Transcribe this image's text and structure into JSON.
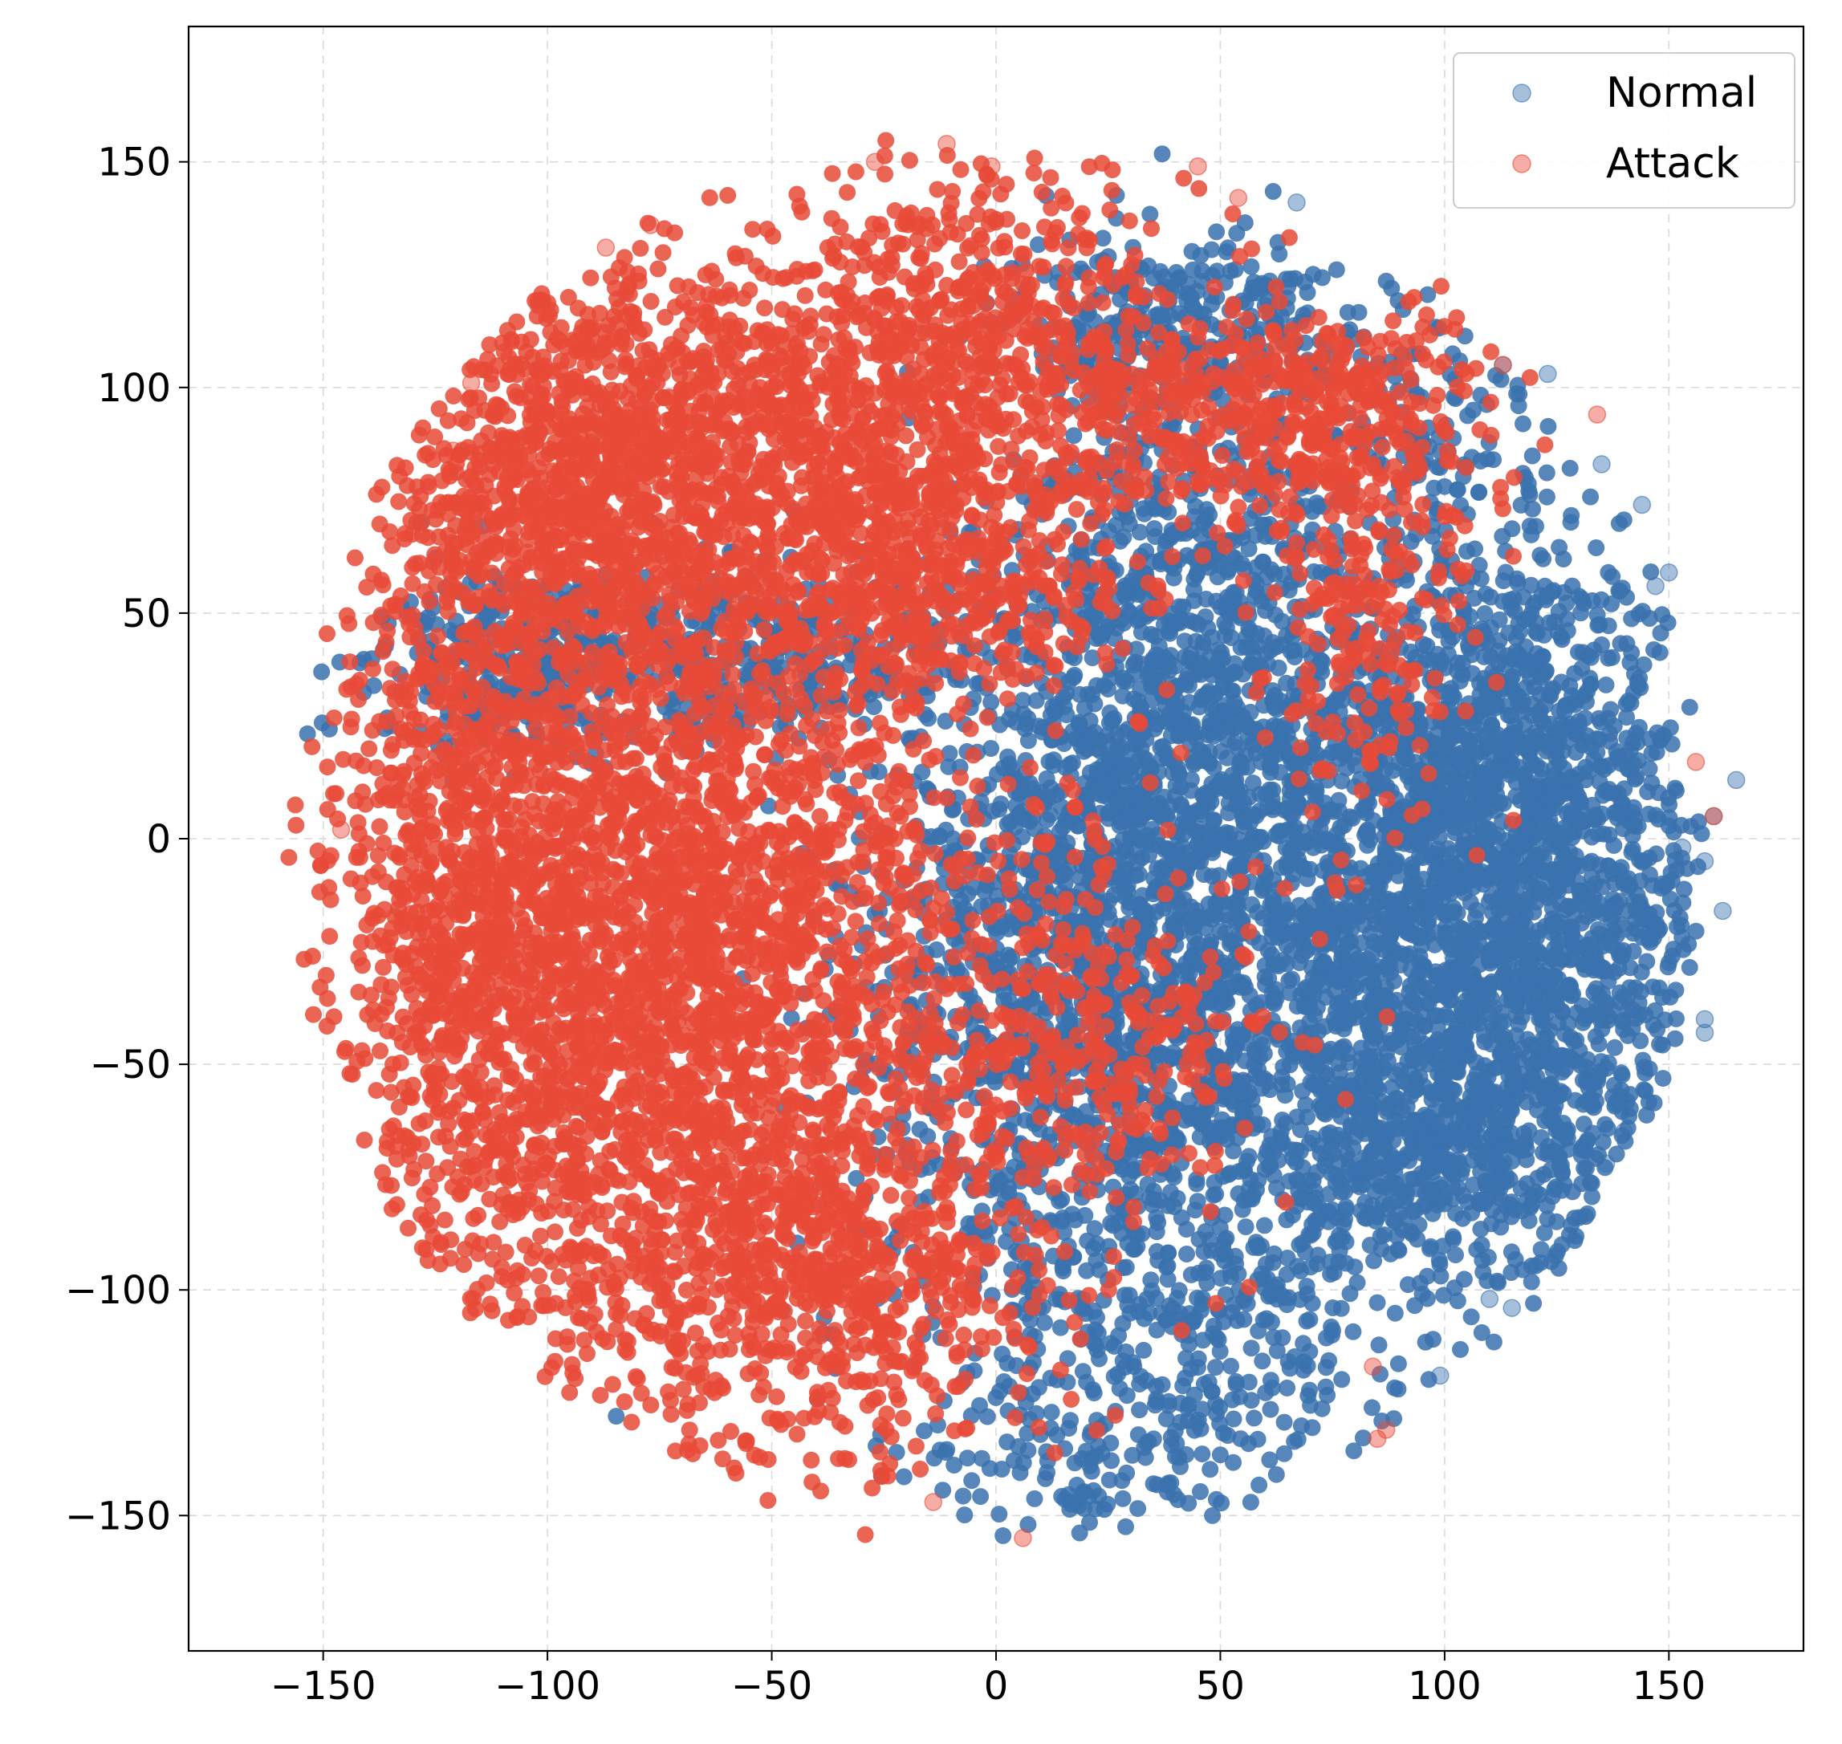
{
  "chart_data": {
    "type": "scatter",
    "title": "",
    "xlabel": "",
    "ylabel": "",
    "xlim": [
      -180,
      180
    ],
    "ylim": [
      -180,
      180
    ],
    "xticks": [
      -150,
      -100,
      -50,
      0,
      50,
      100,
      150
    ],
    "yticks": [
      -150,
      -100,
      -50,
      0,
      50,
      100,
      150
    ],
    "xtick_labels": [
      "−150",
      "−100",
      "−50",
      "0",
      "50",
      "100",
      "150"
    ],
    "ytick_labels": [
      "−150",
      "−100",
      "−50",
      "0",
      "50",
      "100",
      "150"
    ],
    "grid": true,
    "legend_position": "top-right",
    "series": [
      {
        "name": "Normal",
        "color": "#3a72ae",
        "clusters": [
          {
            "cx": 25,
            "cy": -30,
            "sx": 28,
            "sy": 35,
            "n": 1600
          },
          {
            "cx": 40,
            "cy": 40,
            "sx": 22,
            "sy": 40,
            "n": 1100
          },
          {
            "cx": 95,
            "cy": -15,
            "sx": 22,
            "sy": 32,
            "n": 1500
          },
          {
            "cx": 120,
            "cy": 20,
            "sx": 18,
            "sy": 25,
            "n": 650
          },
          {
            "cx": 130,
            "cy": -30,
            "sx": 14,
            "sy": 22,
            "n": 380
          },
          {
            "cx": 100,
            "cy": -70,
            "sx": 25,
            "sy": 15,
            "n": 550
          },
          {
            "cx": 40,
            "cy": -110,
            "sx": 30,
            "sy": 18,
            "n": 400
          },
          {
            "cx": 20,
            "cy": -140,
            "sx": 18,
            "sy": 8,
            "n": 90
          },
          {
            "cx": -70,
            "cy": 40,
            "sx": 35,
            "sy": 10,
            "n": 500
          },
          {
            "cx": -110,
            "cy": 40,
            "sx": 15,
            "sy": 10,
            "n": 160
          },
          {
            "cx": 40,
            "cy": 115,
            "sx": 18,
            "sy": 8,
            "n": 250
          },
          {
            "cx": 90,
            "cy": 90,
            "sx": 15,
            "sy": 15,
            "n": 140
          }
        ],
        "outliers": [
          [
            150,
            59
          ],
          [
            147,
            56
          ],
          [
            144,
            74
          ],
          [
            135,
            83
          ],
          [
            165,
            13
          ],
          [
            160,
            5
          ],
          [
            153,
            -2
          ],
          [
            158,
            -5
          ],
          [
            140,
            -20
          ],
          [
            162,
            -16
          ],
          [
            158,
            -40
          ],
          [
            158,
            -43
          ],
          [
            140,
            -65
          ],
          [
            136,
            -72
          ],
          [
            110,
            -102
          ],
          [
            115,
            -104
          ],
          [
            99,
            -119
          ],
          [
            67,
            141
          ],
          [
            113,
            105
          ],
          [
            123,
            103
          ]
        ]
      },
      {
        "name": "Attack",
        "color": "#e84a37",
        "clusters": [
          {
            "cx": -75,
            "cy": -30,
            "sx": 35,
            "sy": 45,
            "n": 3000
          },
          {
            "cx": -60,
            "cy": 80,
            "sx": 35,
            "sy": 25,
            "n": 1600
          },
          {
            "cx": -120,
            "cy": 0,
            "sx": 12,
            "sy": 45,
            "n": 650
          },
          {
            "cx": -40,
            "cy": -100,
            "sx": 25,
            "sy": 18,
            "n": 550
          },
          {
            "cx": -5,
            "cy": 110,
            "sx": 20,
            "sy": 20,
            "n": 550
          },
          {
            "cx": 60,
            "cy": 95,
            "sx": 25,
            "sy": 12,
            "n": 450
          },
          {
            "cx": 80,
            "cy": 55,
            "sx": 12,
            "sy": 25,
            "n": 260
          },
          {
            "cx": 20,
            "cy": -45,
            "sx": 20,
            "sy": 20,
            "n": 320
          },
          {
            "cx": -10,
            "cy": 55,
            "sx": 20,
            "sy": 15,
            "n": 300
          },
          {
            "cx": -100,
            "cy": 80,
            "sx": 15,
            "sy": 20,
            "n": 350
          }
        ],
        "outliers": [
          [
            -146,
            2
          ],
          [
            -117,
            101
          ],
          [
            -121,
            86
          ],
          [
            -87,
            131
          ],
          [
            -77,
            136
          ],
          [
            -27,
            150
          ],
          [
            -11,
            154
          ],
          [
            -1,
            149
          ],
          [
            45,
            149
          ],
          [
            54,
            142
          ],
          [
            134,
            94
          ],
          [
            156,
            17
          ],
          [
            160,
            5
          ],
          [
            113,
            105
          ],
          [
            85,
            -133
          ],
          [
            87,
            -131
          ],
          [
            84,
            -117
          ],
          [
            6,
            -155
          ],
          [
            -14,
            -147
          ]
        ]
      }
    ]
  }
}
